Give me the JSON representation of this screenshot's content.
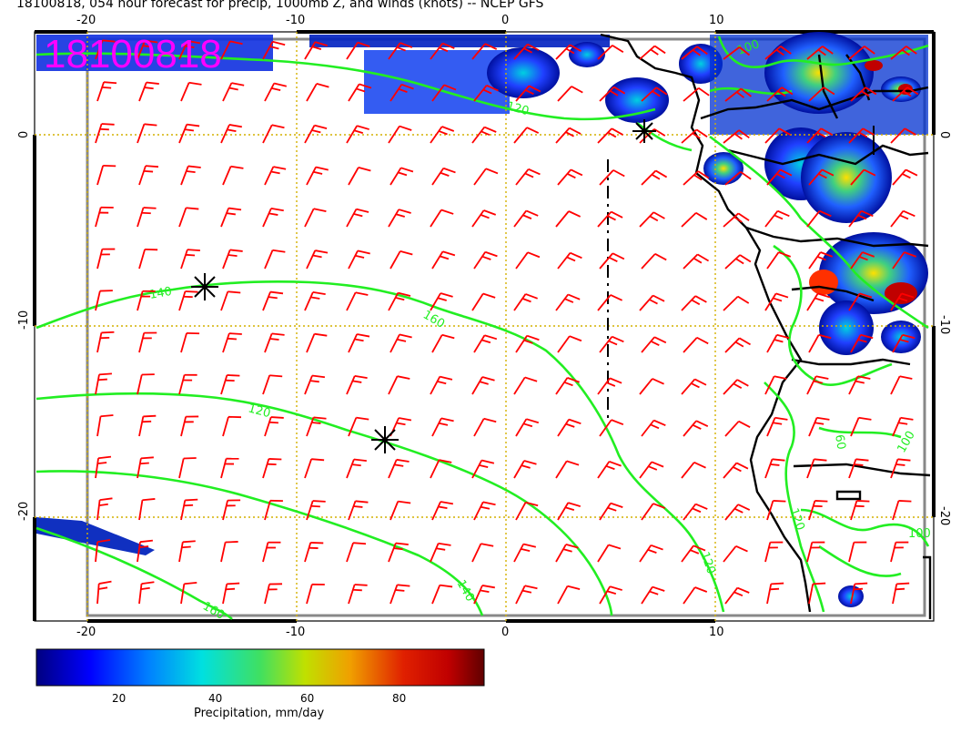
{
  "title": "18100818, 054 hour forecast for precip, 1000mb Z, and winds (knots) -- NCEP GFS",
  "stamp": "18100818",
  "axes": {
    "lon_ticks": [
      "-20",
      "-10",
      "0",
      "10"
    ],
    "lat_ticks": [
      "0",
      "-10",
      "-20"
    ]
  },
  "contour_labels": [
    "100",
    "120",
    "140",
    "160",
    "120",
    "140",
    "160",
    "60",
    "100",
    "100",
    "120",
    "120"
  ],
  "colorbar": {
    "label": "Precipitation, mm/day",
    "ticks": [
      "20",
      "40",
      "60",
      "80"
    ]
  },
  "colors": {
    "contour": "#22ee22",
    "wind_barb": "#ff0000",
    "stamp": "#ff00ff",
    "grid": "#d4b000",
    "coast": "#000000"
  }
}
